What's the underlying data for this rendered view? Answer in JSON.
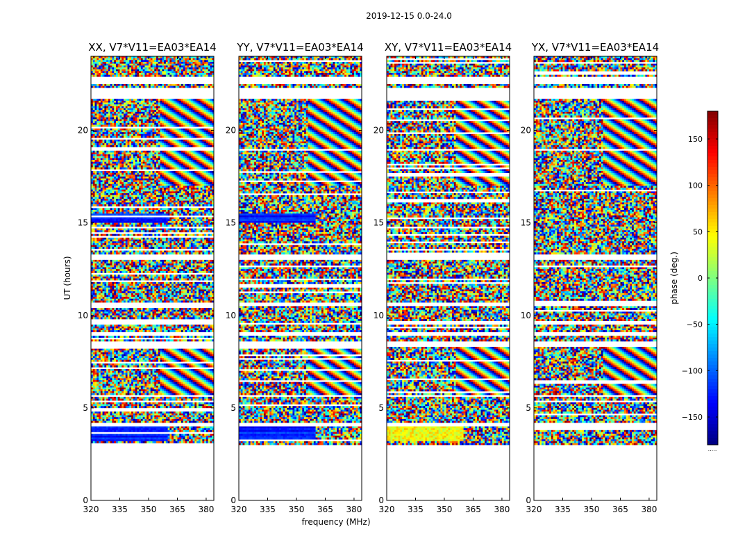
{
  "chart_data": {
    "type": "heatmap",
    "suptitle": "2019-12-15 0.0-24.0",
    "panels": [
      {
        "title": "XX, V7*V11=EA03*EA14",
        "pol": "XX"
      },
      {
        "title": "YY, V7*V11=EA03*EA14",
        "pol": "YY"
      },
      {
        "title": "XY, V7*V11=EA03*EA14",
        "pol": "XY"
      },
      {
        "title": "YX, V7*V11=EA03*EA14",
        "pol": "YX"
      }
    ],
    "xlabel": "frequency (MHz)",
    "ylabel": "UT (hours)",
    "xlim": [
      320,
      384
    ],
    "ylim": [
      0,
      24
    ],
    "xticks": [
      320,
      335,
      350,
      365,
      380
    ],
    "yticks": [
      0,
      5,
      10,
      15,
      20
    ],
    "colorbar": {
      "label": "phase (deg.)",
      "range": [
        -180,
        180
      ],
      "ticks": [
        -150,
        -100,
        -50,
        0,
        50,
        100,
        150
      ],
      "tick_labels": [
        "−150",
        "−100",
        "−50",
        "0",
        "50",
        "100",
        "150"
      ],
      "colormap": "jet",
      "footer": "....."
    },
    "data_present_ut_ranges": [
      [
        3.05,
        4.05
      ],
      [
        4.2,
        5.6
      ],
      [
        5.7,
        8.3
      ],
      [
        8.6,
        8.9
      ],
      [
        9.1,
        9.5
      ],
      [
        9.6,
        10.5
      ],
      [
        10.7,
        13.0
      ],
      [
        13.3,
        18.9
      ],
      [
        19.0,
        21.7
      ],
      [
        22.3,
        22.45
      ],
      [
        22.9,
        24.0
      ]
    ],
    "description_bands_ut": {
      "structured_fringes_high_freq": [
        [
          17.0,
          18.9
        ],
        [
          19.0,
          21.7
        ],
        [
          5.7,
          8.3
        ]
      ],
      "coherent_low_freq_blue_xx_yy": [
        [
          15.0,
          15.5
        ],
        [
          3.2,
          4.0
        ]
      ],
      "coherent_yellow_red_xy": [
        [
          3.2,
          4.0
        ]
      ]
    }
  }
}
